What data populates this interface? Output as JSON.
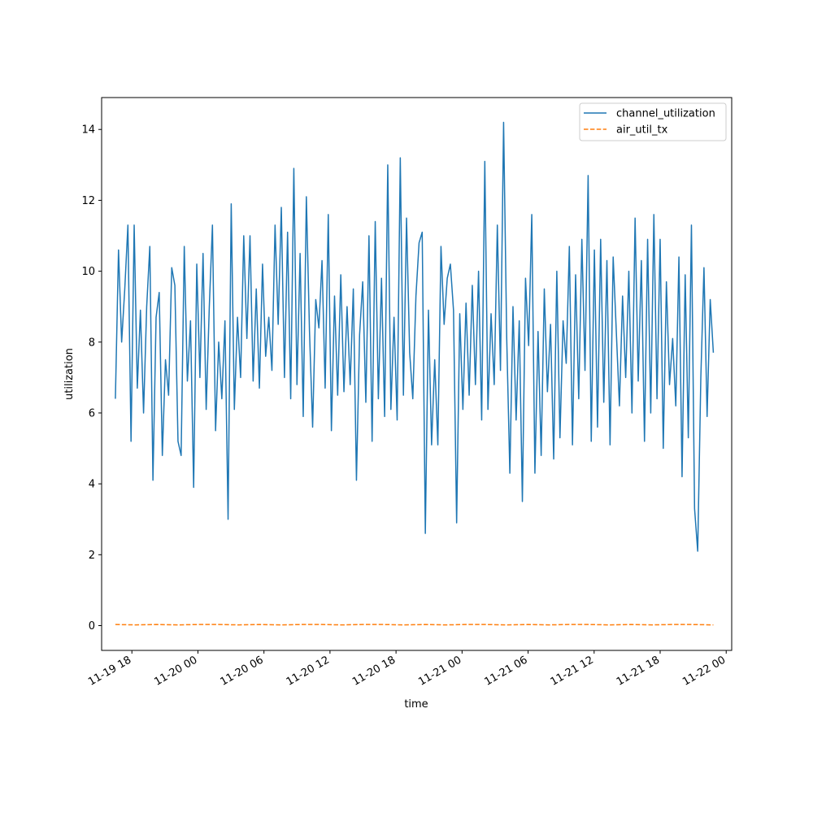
{
  "chart_data": {
    "type": "line",
    "xlabel": "time",
    "ylabel": "utilization",
    "x_range": [
      "2025-11-19 15:15",
      "2025-11-22 00:30"
    ],
    "x_start": "2025-11-19 16:30",
    "x_end": "2025-11-21 22:50",
    "x_ticks": [
      "11-19 18",
      "11-20 00",
      "11-20 06",
      "11-20 12",
      "11-20 18",
      "11-21 00",
      "11-21 06",
      "11-21 12",
      "11-21 18",
      "11-22 00"
    ],
    "ylim": [
      -0.7,
      14.9
    ],
    "y_ticks": [
      "0",
      "2",
      "4",
      "6",
      "8",
      "10",
      "12",
      "14"
    ],
    "legend_position": "upper right",
    "grid": false,
    "series": [
      {
        "name": "channel_utilization",
        "color": "#1f77b4",
        "style": "solid",
        "values": [
          6.4,
          10.6,
          8.0,
          9.5,
          11.3,
          5.2,
          11.3,
          6.7,
          8.9,
          6.0,
          9.0,
          10.7,
          4.1,
          8.7,
          9.4,
          4.8,
          7.5,
          6.5,
          10.1,
          9.6,
          5.2,
          4.8,
          10.7,
          6.9,
          8.6,
          3.9,
          10.2,
          7.0,
          10.5,
          6.1,
          9.0,
          11.3,
          5.5,
          8.0,
          6.4,
          8.6,
          3.0,
          11.9,
          6.1,
          8.7,
          7.0,
          11.0,
          8.1,
          11.0,
          6.9,
          9.5,
          6.7,
          10.2,
          7.6,
          8.7,
          7.2,
          11.3,
          8.5,
          11.8,
          7.0,
          11.1,
          6.4,
          12.9,
          6.8,
          10.5,
          5.9,
          12.1,
          8.3,
          5.6,
          9.2,
          8.4,
          10.3,
          6.7,
          11.6,
          5.5,
          9.3,
          6.5,
          9.9,
          6.6,
          9.0,
          6.8,
          9.5,
          4.1,
          8.2,
          9.7,
          6.3,
          11.0,
          5.2,
          11.4,
          6.4,
          9.8,
          5.9,
          13.0,
          6.1,
          8.7,
          5.8,
          13.2,
          6.5,
          11.5,
          7.7,
          6.4,
          9.3,
          10.8,
          11.1,
          2.6,
          8.9,
          5.1,
          7.5,
          5.1,
          10.7,
          8.5,
          9.8,
          10.2,
          8.9,
          2.9,
          8.8,
          6.1,
          9.1,
          6.5,
          9.6,
          6.8,
          10.0,
          5.8,
          13.1,
          6.1,
          8.8,
          6.8,
          11.3,
          7.2,
          14.2,
          8.1,
          4.3,
          9.0,
          5.8,
          8.6,
          3.5,
          9.8,
          7.9,
          11.6,
          4.3,
          8.3,
          4.8,
          9.5,
          6.6,
          8.5,
          4.7,
          10.0,
          5.3,
          8.6,
          7.4,
          10.7,
          5.1,
          9.9,
          6.4,
          10.9,
          7.2,
          12.7,
          5.2,
          10.6,
          5.6,
          10.9,
          6.3,
          10.3,
          5.1,
          10.4,
          8.3,
          6.2,
          9.3,
          7.0,
          10.0,
          6.0,
          11.5,
          6.9,
          10.3,
          5.2,
          10.9,
          6.0,
          11.6,
          6.4,
          10.9,
          5.0,
          9.7,
          6.8,
          8.1,
          6.2,
          10.4,
          4.2,
          9.9,
          5.3,
          11.3,
          3.3,
          2.1,
          7.0,
          10.1,
          5.9,
          9.2,
          7.7
        ]
      },
      {
        "name": "air_util_tx",
        "color": "#ff7f0e",
        "style": "dashed",
        "values": [
          0.03,
          0.02,
          0.03,
          0.02,
          0.03,
          0.03,
          0.02,
          0.03,
          0.02,
          0.03,
          0.03,
          0.02,
          0.03,
          0.03,
          0.02,
          0.03,
          0.02,
          0.03,
          0.03,
          0.02,
          0.03,
          0.02,
          0.03,
          0.03,
          0.02,
          0.03,
          0.02,
          0.03,
          0.03,
          0.02
        ]
      }
    ]
  }
}
